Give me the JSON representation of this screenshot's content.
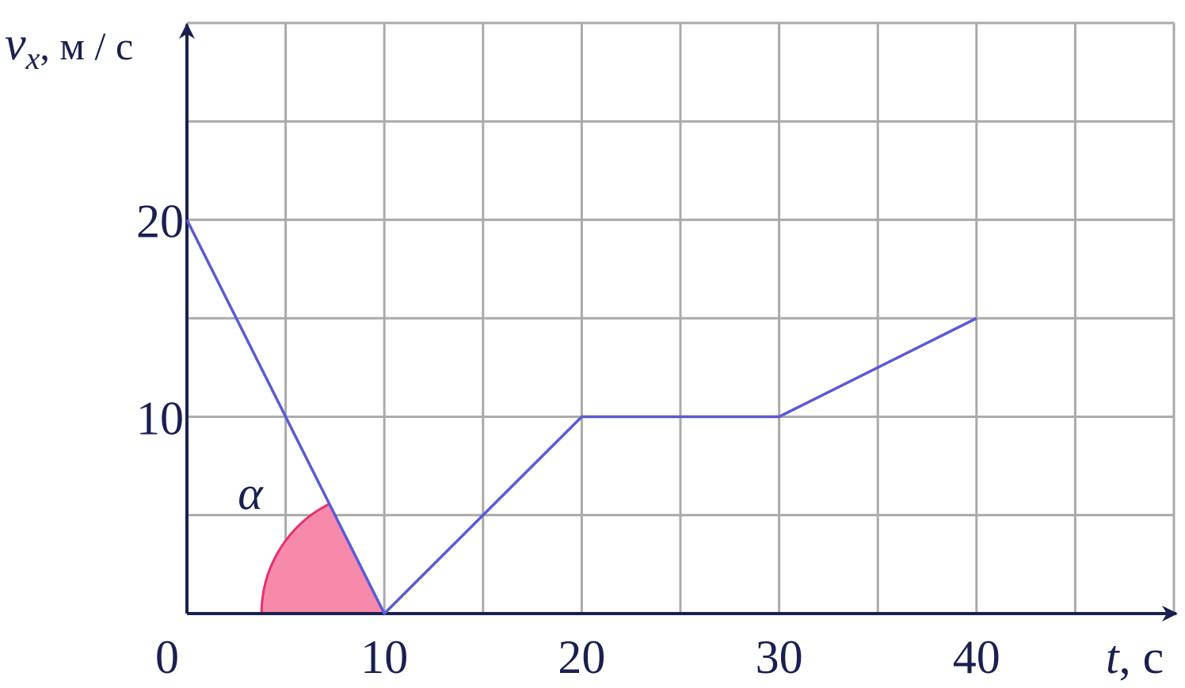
{
  "chart_data": {
    "type": "line",
    "x": [
      0,
      10,
      20,
      30,
      40
    ],
    "series": [
      {
        "color": "#5a5ad6",
        "values": [
          20,
          0,
          10,
          10,
          15
        ]
      }
    ],
    "xlim": [
      0,
      50
    ],
    "ylim": [
      0,
      30
    ],
    "xticks": [
      0,
      10,
      20,
      30,
      40
    ],
    "yticks": [
      10,
      20
    ],
    "grid_xticks": [
      0,
      5,
      10,
      15,
      20,
      25,
      30,
      35,
      40,
      45,
      50
    ],
    "grid_yticks": [
      0,
      5,
      10,
      15,
      20,
      25,
      30
    ],
    "grid": true,
    "xlabel": [
      "t",
      ", с"
    ],
    "ylabel": [
      "v",
      "x",
      ", м / с"
    ],
    "annotation": "α"
  }
}
